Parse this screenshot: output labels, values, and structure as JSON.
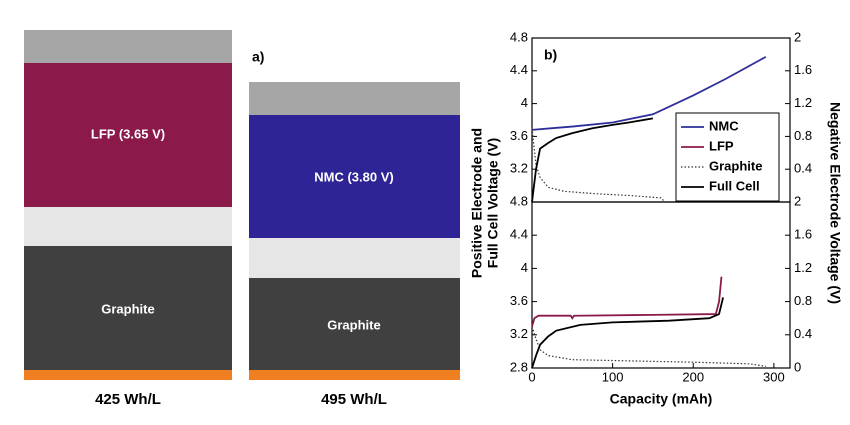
{
  "figure_a": {
    "label": "a)",
    "columns": [
      {
        "caption": "425 Wh/L",
        "cathode": "LFP (3.65 V)",
        "anode": "Graphite"
      },
      {
        "caption": "495 Wh/L",
        "cathode": "NMC (3.80 V)",
        "anode": "Graphite"
      }
    ]
  },
  "chart_data": [
    {
      "type": "line",
      "panel_label": "b)",
      "ylabel": [
        "Positive Electrode and",
        "Full Cell Voltage (V)"
      ],
      "y2label": "Negative Electrode Voltage (V)",
      "xlim": [
        0,
        320
      ],
      "ylim": [
        2.8,
        4.8
      ],
      "yticks": [
        3.2,
        3.6,
        4,
        4.4,
        4.8
      ],
      "y2lim": [
        0,
        2
      ],
      "y2ticks": [
        0.4,
        0.8,
        1.2,
        1.6,
        2
      ],
      "legend": "center right",
      "series": [
        {
          "name": "NMC",
          "color": "#2e2e9a",
          "style": "solid",
          "x": [
            0,
            25,
            50,
            100,
            150,
            200,
            240,
            290
          ],
          "values": [
            3.68,
            3.7,
            3.72,
            3.77,
            3.87,
            4.1,
            4.3,
            4.57
          ]
        },
        {
          "name": "Graphite",
          "color": "#333333",
          "style": "dotted",
          "axis": "y2",
          "x": [
            0,
            5,
            10,
            20,
            40,
            80,
            120,
            160,
            165
          ],
          "values": [
            0.9,
            0.45,
            0.3,
            0.18,
            0.13,
            0.1,
            0.08,
            0.05,
            0
          ]
        },
        {
          "name": "Full Cell",
          "color": "#000000",
          "style": "solid",
          "x": [
            0,
            5,
            10,
            20,
            30,
            50,
            75,
            100,
            120,
            150
          ],
          "values": [
            2.8,
            3.2,
            3.45,
            3.52,
            3.58,
            3.64,
            3.7,
            3.74,
            3.77,
            3.82
          ]
        }
      ]
    },
    {
      "type": "line",
      "xlabel": "Capacity (mAh)",
      "xlim": [
        0,
        320
      ],
      "xticks": [
        0,
        100,
        200,
        300
      ],
      "ylim": [
        2.8,
        4.8
      ],
      "yticks": [
        2.8,
        3.2,
        3.6,
        4,
        4.4,
        4.8
      ],
      "y2lim": [
        0,
        2
      ],
      "y2ticks": [
        0,
        0.4,
        0.8,
        1.2,
        1.6,
        2
      ],
      "series": [
        {
          "name": "LFP",
          "color": "#8b1a4a",
          "style": "solid",
          "x": [
            0,
            3,
            8,
            48,
            50,
            52,
            150,
            228,
            232,
            235
          ],
          "values": [
            3.3,
            3.4,
            3.43,
            3.43,
            3.4,
            3.43,
            3.44,
            3.45,
            3.6,
            3.9
          ]
        },
        {
          "name": "Graphite",
          "color": "#333333",
          "style": "dotted",
          "axis": "y2",
          "x": [
            0,
            5,
            10,
            20,
            50,
            100,
            150,
            200,
            270,
            290
          ],
          "values": [
            0.5,
            0.35,
            0.22,
            0.15,
            0.1,
            0.09,
            0.08,
            0.07,
            0.05,
            0.02
          ]
        },
        {
          "name": "Full Cell",
          "color": "#000000",
          "style": "solid",
          "x": [
            0,
            5,
            10,
            20,
            30,
            60,
            100,
            170,
            220,
            232,
            237
          ],
          "values": [
            2.8,
            2.95,
            3.08,
            3.18,
            3.25,
            3.32,
            3.35,
            3.37,
            3.4,
            3.45,
            3.65
          ]
        }
      ]
    }
  ]
}
